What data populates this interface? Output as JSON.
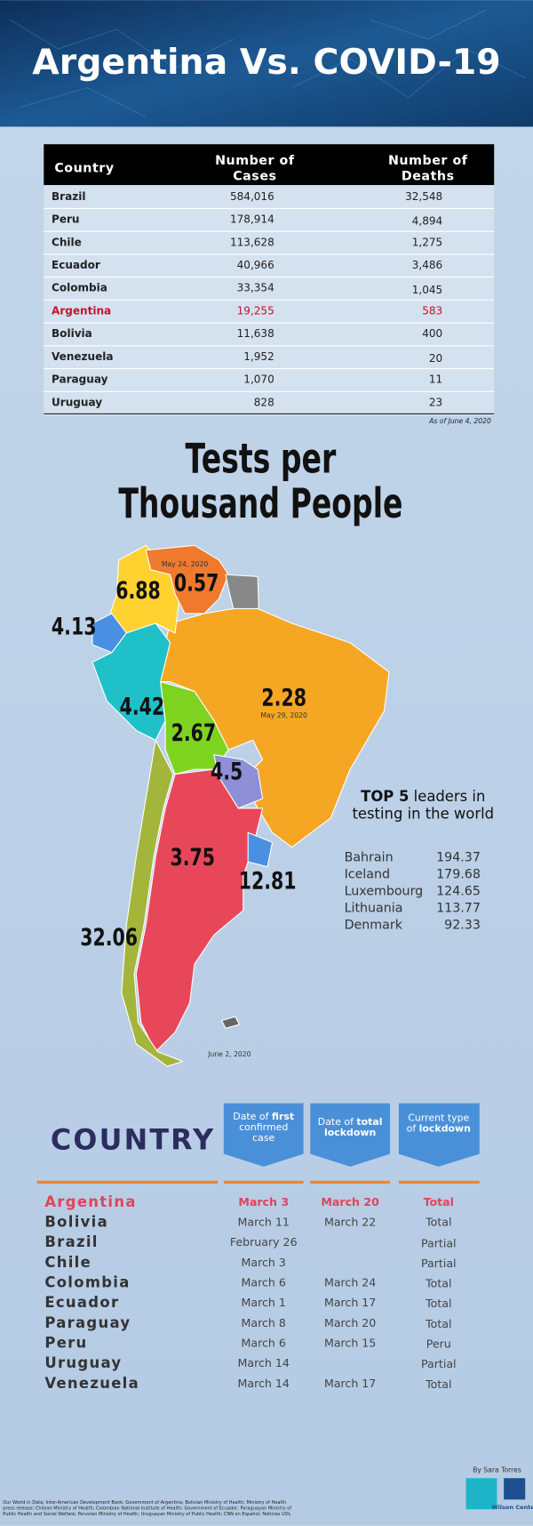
{
  "header": {
    "title": "Argentina Vs. COVID-19"
  },
  "table": {
    "columns": [
      [
        "Country"
      ],
      [
        "Number of",
        "Cases"
      ],
      [
        "Number of",
        "Deaths"
      ]
    ],
    "rows": [
      [
        "Brazil",
        "584,016",
        "32,548"
      ],
      [
        "Peru",
        "178,914",
        "4,894"
      ],
      [
        "Chile",
        "113,628",
        "1,275"
      ],
      [
        "Ecuador",
        "40,966",
        "3,486"
      ],
      [
        "Colombia",
        "33,354",
        "1,045"
      ],
      [
        "Argentina",
        "19,255",
        "583"
      ],
      [
        "Bolivia",
        "11,638",
        "400"
      ],
      [
        "Venezuela",
        "1,952",
        "20"
      ],
      [
        "Paraguay",
        "1,070",
        "11"
      ],
      [
        "Uruguay",
        "828",
        "23"
      ]
    ],
    "highlight_row": 5,
    "note": "As of June 4, 2020"
  },
  "map": {
    "title": [
      "Tests per",
      "Thousand People"
    ],
    "labels": [
      6.88,
      0.57,
      4.13,
      4.42,
      2.28,
      2.67,
      4.5,
      3.75,
      12.81,
      32.06
    ],
    "dates": [
      "May 24, 2020",
      "May 29, 2020",
      "June 2, 2020"
    ]
  },
  "top5": {
    "title": [
      [
        {
          "text": "TOP 5",
          "bold": true
        },
        {
          "text": " leaders in"
        }
      ],
      [
        {
          "text": "testing in the world"
        }
      ]
    ],
    "rows": [
      [
        "Bahrain",
        194.37
      ],
      [
        "Iceland",
        179.68
      ],
      [
        "Luxembourg",
        124.65
      ],
      [
        "Lithuania",
        113.77
      ],
      [
        "Denmark",
        92.33
      ]
    ]
  },
  "timeline": {
    "heading": "COUNTRY",
    "columns": [
      [
        [
          {
            "text": "Date of "
          },
          {
            "text": "first",
            "bold": true
          }
        ],
        [
          {
            "text": "confirmed"
          }
        ],
        [
          {
            "text": "case"
          }
        ]
      ],
      [
        [
          {
            "text": "Date of "
          },
          {
            "text": "total",
            "bold": true
          }
        ],
        [
          {
            "text": "lockdown",
            "bold": true
          }
        ]
      ],
      [
        [
          {
            "text": "Current type"
          }
        ],
        [
          {
            "text": "of "
          },
          {
            "text": "lockdown",
            "bold": true
          }
        ]
      ]
    ],
    "rows": [
      [
        "Argentina",
        "March 3",
        "March 20",
        "Total"
      ],
      [
        "Bolivia",
        "March 11",
        "March 22",
        "Total"
      ],
      [
        "Brazil",
        "February 26",
        null,
        "Partial"
      ],
      [
        "Chile",
        "March 3",
        null,
        "Partial"
      ],
      [
        "Colombia",
        "March 6",
        "March 24",
        "Total"
      ],
      [
        "Ecuador",
        "March 1",
        "March 17",
        "Total"
      ],
      [
        "Paraguay",
        "March 8",
        "March 20",
        "Total"
      ],
      [
        "Peru",
        "March 6",
        "March 15",
        "Peru"
      ],
      [
        "Uruguay",
        "March 14",
        null,
        "Partial"
      ],
      [
        "Venezuela",
        "March 14",
        "March 17",
        "Total"
      ]
    ],
    "highlight_row": 0
  },
  "footer": {
    "credit": "By Sara Torres",
    "logo": "Wilson Center",
    "sources": [
      "Our World in Data; Inter-American Development Bank; Government of Argentina; Bolivian Ministry of Health; Ministry of Health",
      "press release; Chilean Ministry of Health; Colombian National Institute of Health; Government of Ecuador; Paraguayan Ministry of",
      "Public Health and Social Welfare; Peruvian Ministry of Health; Uruguayan Ministry of Public Health; CNN en Español; Noticias UOL"
    ]
  }
}
